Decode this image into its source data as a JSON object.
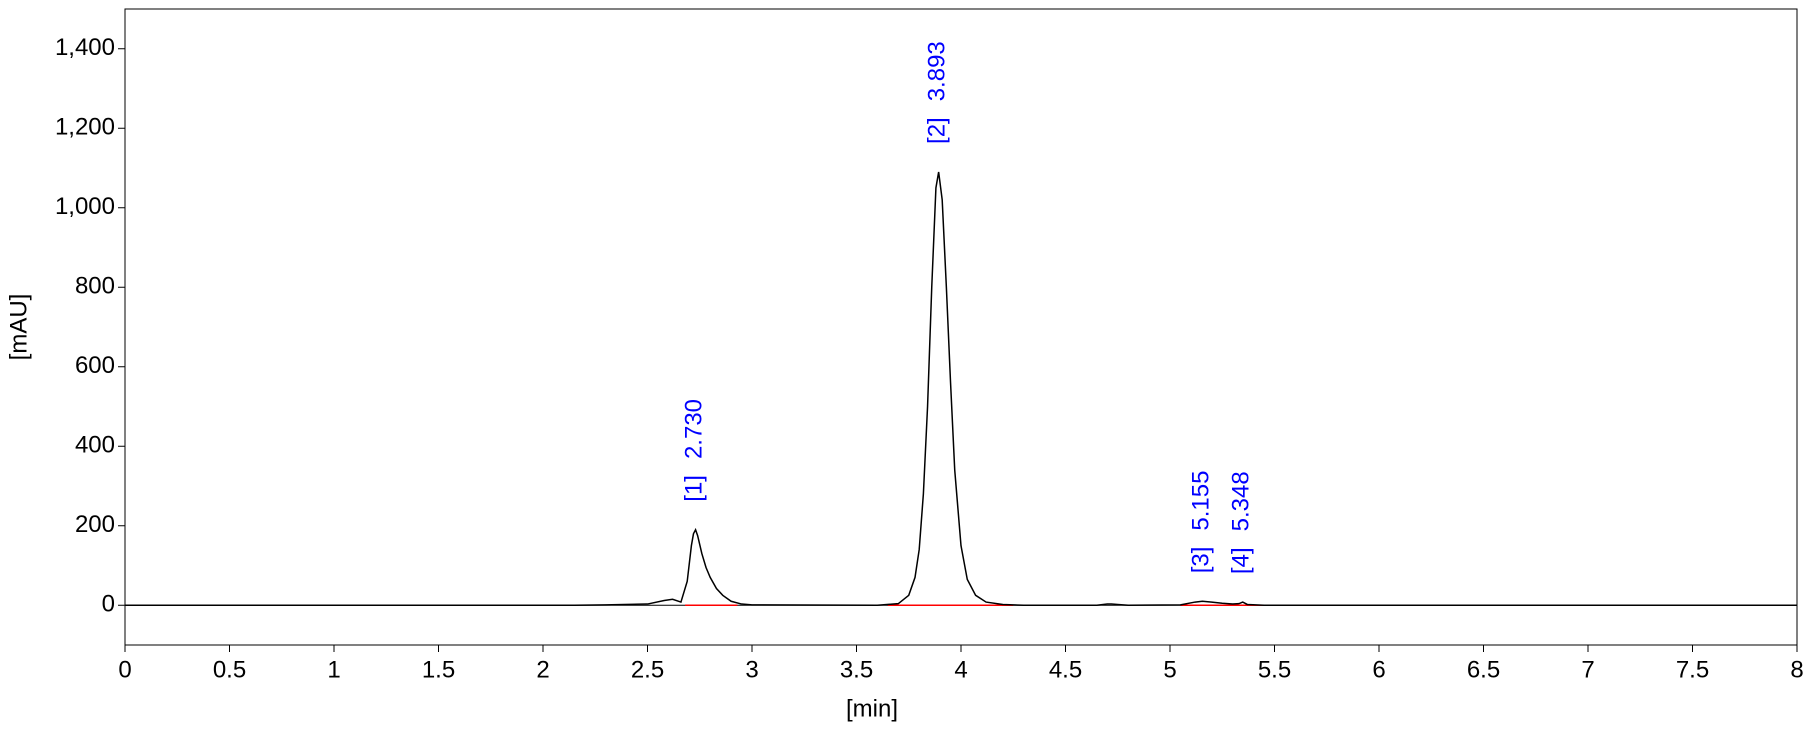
{
  "chart_data": {
    "type": "line",
    "x_label": "[min]",
    "y_label": "[mAU]",
    "xlim": [
      0,
      8
    ],
    "ylim": [
      -100,
      1500
    ],
    "xticks": [
      0,
      0.5,
      1,
      1.5,
      2,
      2.5,
      3,
      3.5,
      4,
      4.5,
      5,
      5.5,
      6,
      6.5,
      7,
      7.5,
      8
    ],
    "yticks": [
      0,
      200,
      400,
      600,
      800,
      {
        "value": 1000,
        "label": "1,000"
      },
      {
        "value": 1200,
        "label": "1,200"
      },
      {
        "value": 1400,
        "label": "1,400"
      }
    ],
    "x": [
      0,
      2.15,
      2.3,
      2.5,
      2.58,
      2.62,
      2.66,
      2.69,
      2.71,
      2.72,
      2.73,
      2.74,
      2.76,
      2.78,
      2.8,
      2.83,
      2.86,
      2.9,
      2.95,
      3.0,
      3.6,
      3.7,
      3.75,
      3.78,
      3.8,
      3.82,
      3.84,
      3.86,
      3.88,
      3.893,
      3.91,
      3.93,
      3.95,
      3.97,
      4.0,
      4.03,
      4.07,
      4.12,
      4.2,
      4.3,
      4.65,
      4.7,
      4.72,
      4.75,
      4.8,
      5.05,
      5.12,
      5.155,
      5.2,
      5.25,
      5.3,
      5.33,
      5.348,
      5.37,
      5.45,
      6,
      8
    ],
    "series": [
      {
        "color": "#000000",
        "values": [
          0,
          0,
          1,
          3,
          12,
          15,
          8,
          60,
          150,
          180,
          190,
          175,
          130,
          95,
          70,
          42,
          25,
          10,
          3,
          1,
          0,
          4,
          25,
          70,
          140,
          280,
          500,
          800,
          1050,
          1090,
          1020,
          800,
          560,
          340,
          150,
          65,
          25,
          8,
          2,
          0,
          0,
          3,
          3,
          2,
          0,
          1,
          8,
          10,
          8,
          5,
          3,
          4,
          8,
          2,
          0,
          0,
          0
        ]
      }
    ],
    "integration_baselines": {
      "color": "#ff0000",
      "ranges": [
        [
          2.68,
          2.93
        ],
        [
          3.65,
          4.25
        ],
        [
          5.05,
          5.48
        ]
      ]
    },
    "annotations": {
      "color": "#0000ff",
      "peaks": [
        {
          "label": "[1]",
          "rt": {
            "value": 2.73,
            "label": "2.730"
          }
        },
        {
          "label": "[2]",
          "rt": {
            "value": 3.893,
            "label": "3.893"
          }
        },
        {
          "label": "[3]",
          "rt": {
            "value": 5.155,
            "label": "5.155"
          }
        },
        {
          "label": "[4]",
          "rt": {
            "value": 5.348,
            "label": "5.348"
          }
        }
      ]
    }
  }
}
